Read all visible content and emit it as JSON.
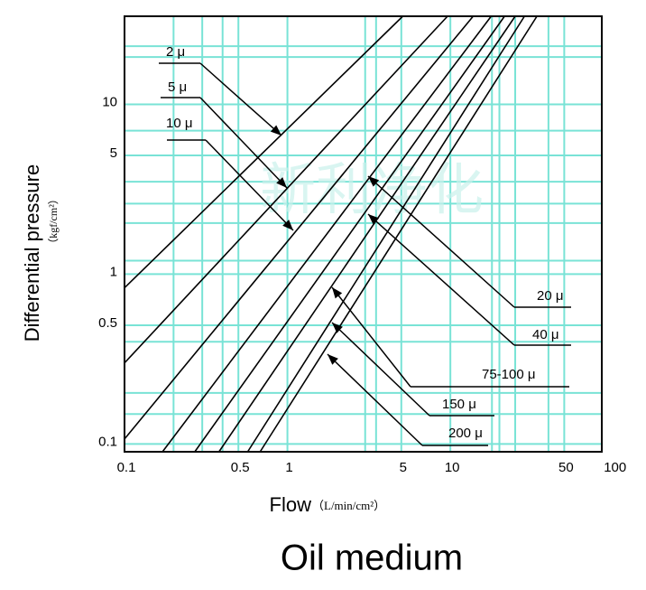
{
  "chart_data": {
    "type": "line",
    "title": "Oil medium",
    "xlabel": "Flow",
    "xlabel_unit": "（L/min/cm²）",
    "ylabel": "Differential pressure",
    "ylabel_unit": "（kgf/cm²）",
    "watermark": "新利净化",
    "log_x": true,
    "log_y": true,
    "xlim": [
      0.1,
      85
    ],
    "ylim": [
      0.09,
      33
    ],
    "xticks": [
      0.1,
      0.5,
      1,
      5,
      10,
      50,
      100
    ],
    "yticks": [
      0.1,
      0.5,
      1,
      5,
      10
    ],
    "x_grid_lines": [
      0.2,
      0.3,
      0.4,
      0.5,
      1,
      3,
      3.5,
      5,
      10,
      18,
      20,
      25,
      40,
      50
    ],
    "y_grid_lines": [
      0.1,
      0.15,
      0.2,
      0.4,
      0.5,
      1,
      1.2,
      2,
      2.6,
      3.5,
      5,
      7,
      10,
      19,
      22
    ],
    "grid_color": "#79e3d6",
    "line_color": "#000000",
    "series": [
      {
        "name": "2 μ",
        "x": [
          0.1,
          5.1
        ],
        "values": [
          0.83,
          33
        ]
      },
      {
        "name": "5 μ",
        "x": [
          0.1,
          9.6
        ],
        "values": [
          0.3,
          33
        ]
      },
      {
        "name": "10 μ",
        "x": [
          0.1,
          13.8
        ],
        "values": [
          0.107,
          33
        ]
      },
      {
        "name": "20 μ",
        "x": [
          0.171,
          17.8
        ],
        "values": [
          0.09,
          33
        ]
      },
      {
        "name": "40 μ",
        "x": [
          0.27,
          21.5
        ],
        "values": [
          0.09,
          33
        ]
      },
      {
        "name": "75-100 μ",
        "x": [
          0.38,
          25
        ],
        "values": [
          0.09,
          33
        ]
      },
      {
        "name": "150 μ",
        "x": [
          0.57,
          28.5
        ],
        "values": [
          0.09,
          33
        ]
      },
      {
        "name": "200 μ",
        "x": [
          0.68,
          34
        ],
        "values": [
          0.09,
          33
        ]
      }
    ]
  }
}
